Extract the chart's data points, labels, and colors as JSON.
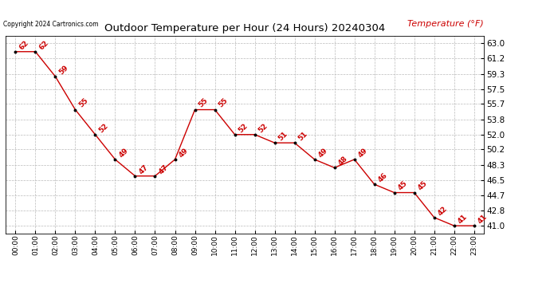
{
  "title": "Outdoor Temperature per Hour (24 Hours) 20240304",
  "copyright_text": "Copyright 2024 Cartronics.com",
  "legend_label": "Temperature (°F)",
  "hours": [
    "00:00",
    "01:00",
    "02:00",
    "03:00",
    "04:00",
    "05:00",
    "06:00",
    "07:00",
    "08:00",
    "09:00",
    "10:00",
    "11:00",
    "12:00",
    "13:00",
    "14:00",
    "15:00",
    "16:00",
    "17:00",
    "18:00",
    "19:00",
    "20:00",
    "21:00",
    "22:00",
    "23:00"
  ],
  "temperatures": [
    62,
    62,
    59,
    55,
    52,
    49,
    47,
    47,
    49,
    55,
    55,
    52,
    52,
    51,
    51,
    49,
    48,
    49,
    46,
    45,
    45,
    42,
    41,
    41
  ],
  "yticks": [
    41.0,
    42.8,
    44.7,
    46.5,
    48.3,
    50.2,
    52.0,
    53.8,
    55.7,
    57.5,
    59.3,
    61.2,
    63.0
  ],
  "line_color": "#cc0000",
  "marker_color": "black",
  "bg_color": "#ffffff",
  "grid_color": "#bbbbbb",
  "title_color": "black",
  "legend_color": "#cc0000",
  "copyright_color": "black",
  "label_color": "#cc0000",
  "ylim_min": 40.1,
  "ylim_max": 63.9
}
